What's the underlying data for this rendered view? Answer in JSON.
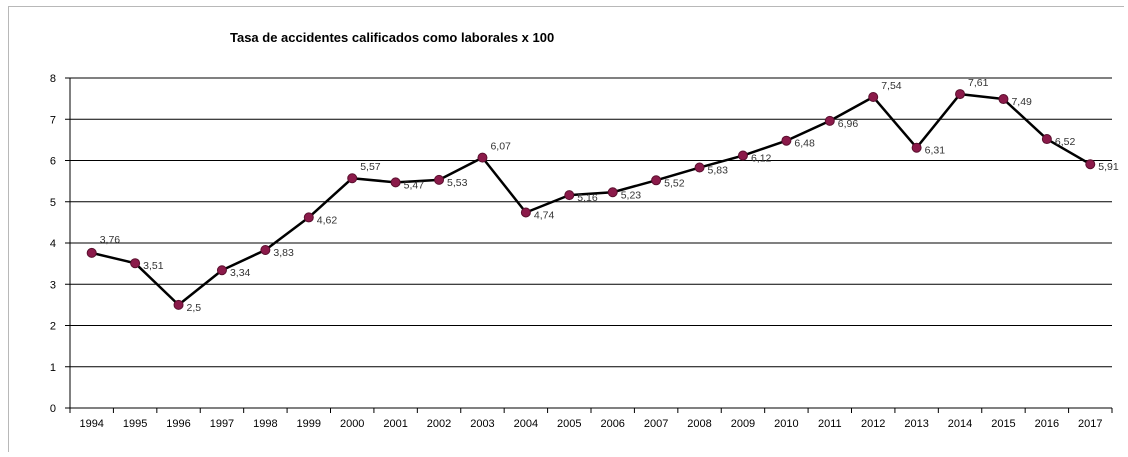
{
  "chart_data": {
    "type": "line",
    "title": "Tasa de accidentes calificados como laborales x 100",
    "xlabel": "",
    "ylabel": "",
    "categories": [
      "1994",
      "1995",
      "1996",
      "1997",
      "1998",
      "1999",
      "2000",
      "2001",
      "2002",
      "2003",
      "2004",
      "2005",
      "2006",
      "2007",
      "2008",
      "2009",
      "2010",
      "2011",
      "2012",
      "2013",
      "2014",
      "2015",
      "2016",
      "2017"
    ],
    "series": [
      {
        "values": [
          3.76,
          3.51,
          2.5,
          3.34,
          3.83,
          4.62,
          5.57,
          5.47,
          5.53,
          6.07,
          4.74,
          5.16,
          5.23,
          5.52,
          5.83,
          6.12,
          6.48,
          6.96,
          7.54,
          6.31,
          7.61,
          7.49,
          6.52,
          5.91
        ],
        "data_labels": [
          "3,76",
          "3,51",
          "2,5",
          "3,34",
          "3,83",
          "4,62",
          "5,57",
          "5,47",
          "5,53",
          "6,07",
          "4,74",
          "5,16",
          "5,23",
          "5,52",
          "5,83",
          "6,12",
          "6,48",
          "6,96",
          "7,54",
          "6,31",
          "7,61",
          "7,49",
          "6,52",
          "5,91"
        ]
      }
    ],
    "ylim": [
      0,
      8
    ],
    "yticks": [
      "0",
      "1",
      "2",
      "3",
      "4",
      "5",
      "6",
      "7",
      "8"
    ],
    "grid": true,
    "legend": "none",
    "colors": {
      "line": "#000000",
      "marker_fill": "#8b1a4a",
      "marker_stroke": "#5a0f2e",
      "grid": "#000000"
    }
  }
}
